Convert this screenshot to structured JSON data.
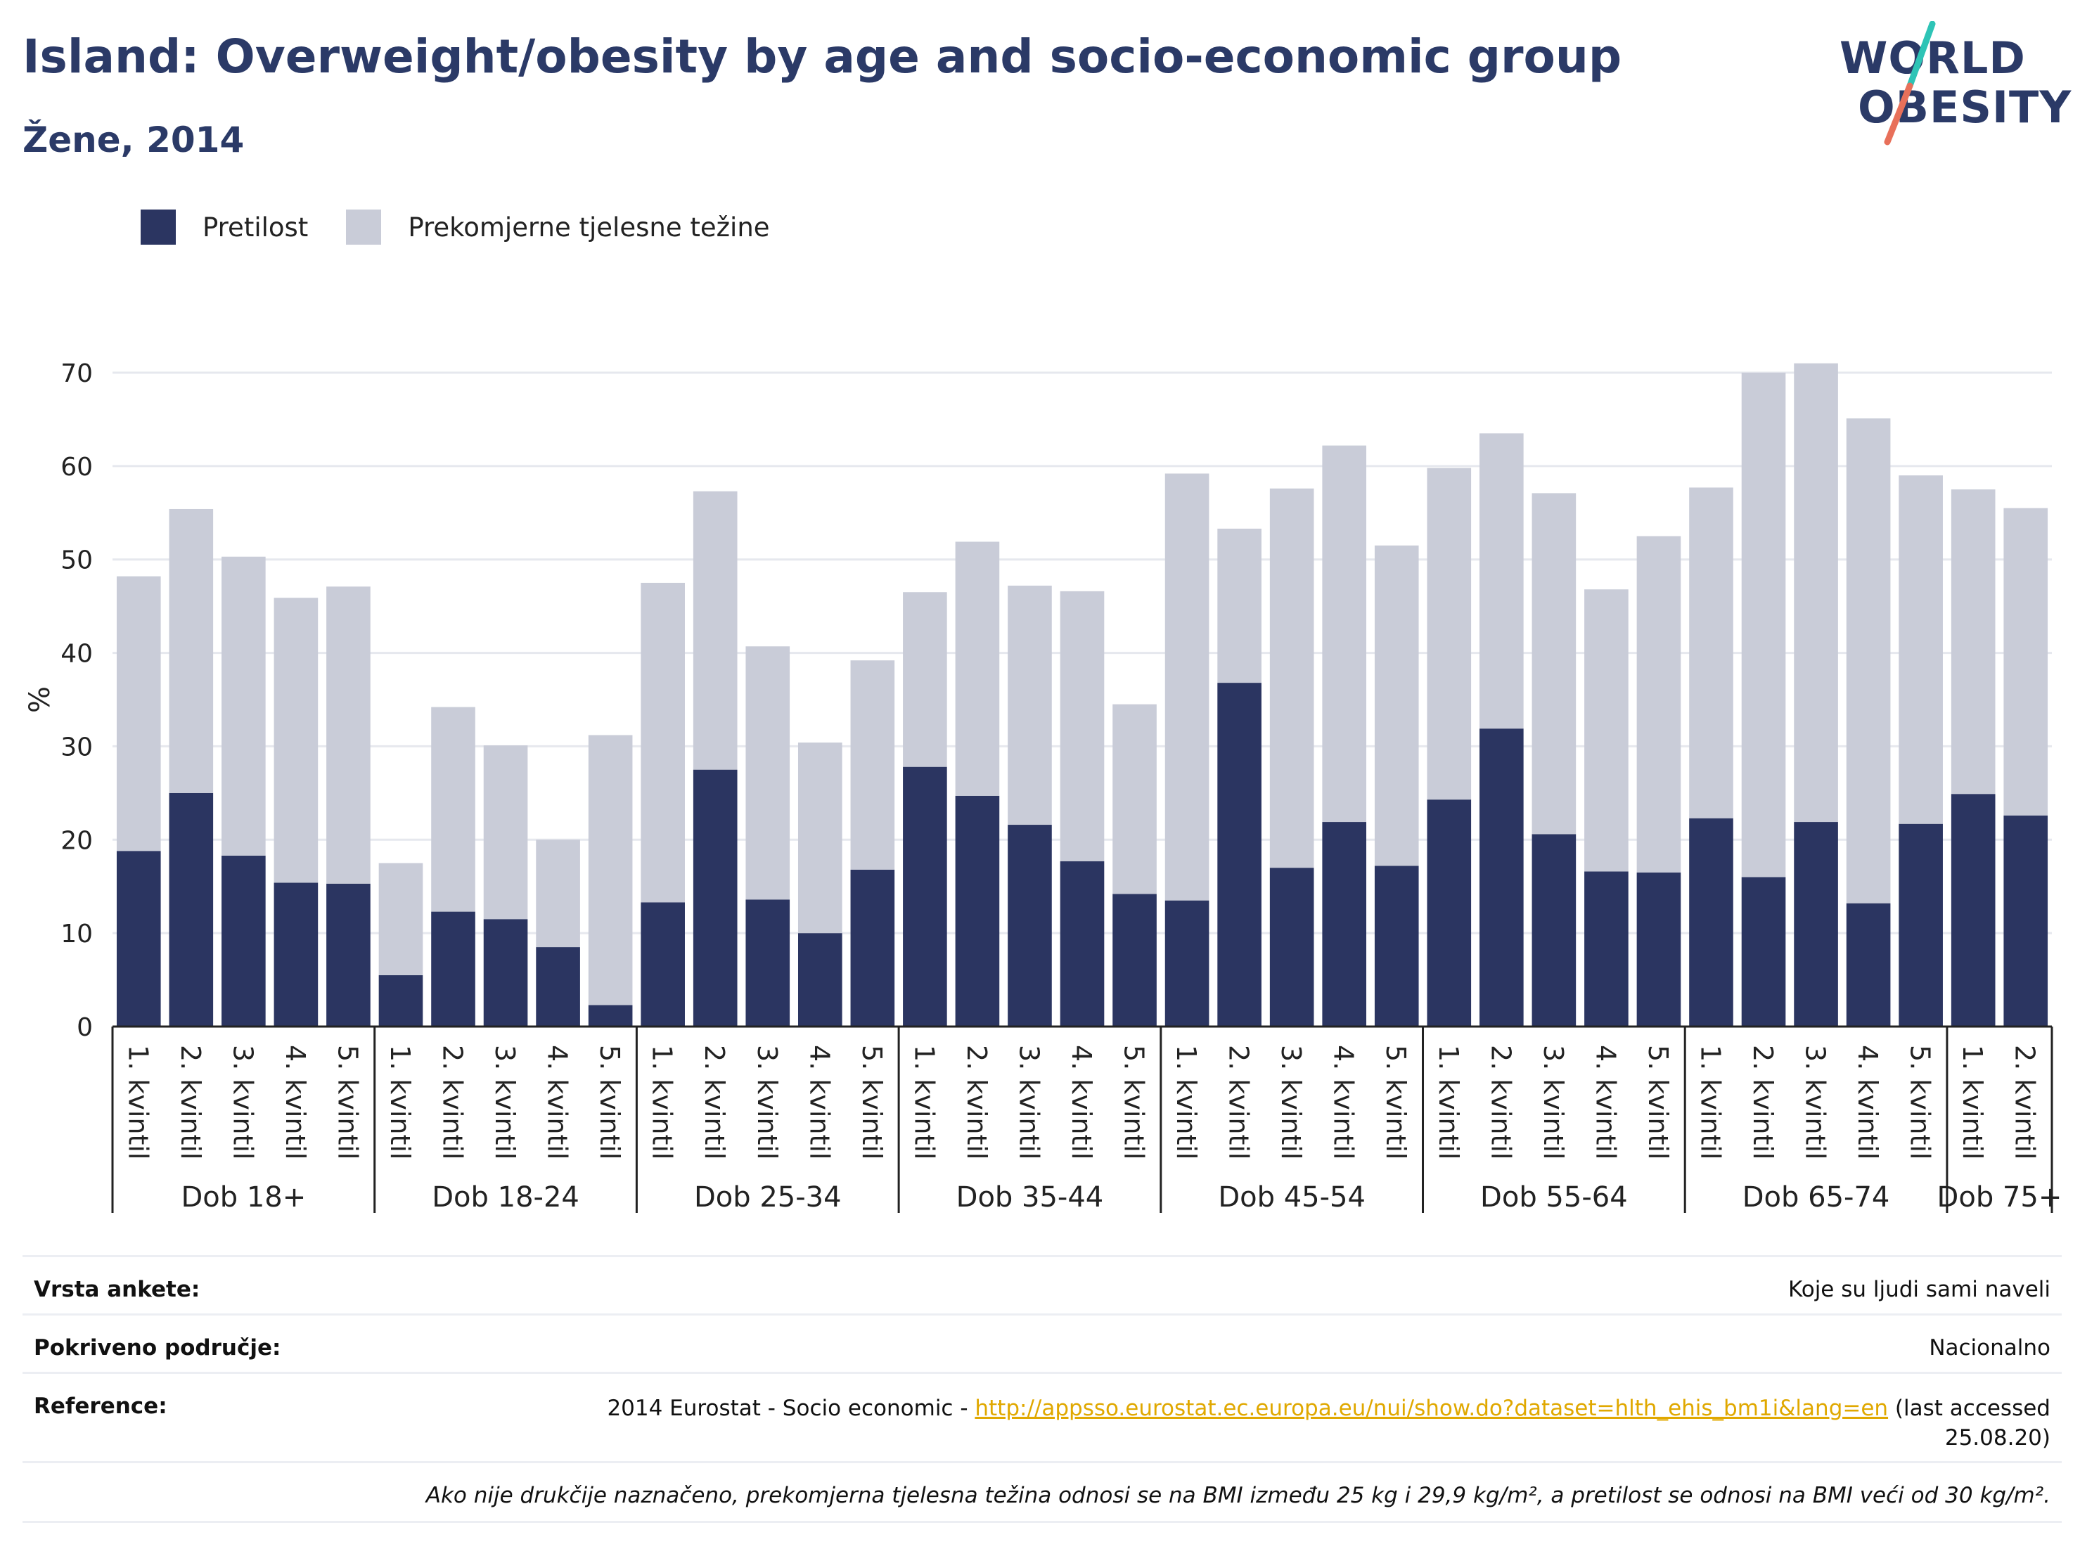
{
  "header": {
    "title": "Island: Overweight/obesity by age and socio-economic group",
    "subtitle": "Žene, 2014"
  },
  "logo": {
    "line1": "WORLD",
    "line2": "OBESITY",
    "accent_teal": "#2ec4b6",
    "accent_coral": "#e8705a"
  },
  "legend": {
    "items": [
      {
        "label": "Pretilost",
        "color": "#2b3561"
      },
      {
        "label": "Prekomjerne tjelesne težine",
        "color": "#c9ccd8"
      }
    ]
  },
  "colors": {
    "obesity": "#2b3561",
    "overweight": "#c9ccd8",
    "grid": "#e6e8ee",
    "axis": "#222222",
    "text": "#2b3a67"
  },
  "chart_data": {
    "type": "bar",
    "stacked": true,
    "ylabel": "%",
    "ylim": [
      0,
      70
    ],
    "yticks": [
      0,
      10,
      20,
      30,
      40,
      50,
      60,
      70
    ],
    "grid": true,
    "legend_position": "top-left",
    "groups": [
      "Dob 18+",
      "Dob 18-24",
      "Dob 25-34",
      "Dob 35-44",
      "Dob 45-54",
      "Dob 55-64",
      "Dob 65-74",
      "Dob 75+"
    ],
    "categories": [
      {
        "label": "1. kvintil",
        "group": "Dob 18+"
      },
      {
        "label": "2. kvintil",
        "group": "Dob 18+"
      },
      {
        "label": "3. kvintil",
        "group": "Dob 18+"
      },
      {
        "label": "4. kvintil",
        "group": "Dob 18+"
      },
      {
        "label": "5. kvintil",
        "group": "Dob 18+"
      },
      {
        "label": "1. kvintil",
        "group": "Dob 18-24"
      },
      {
        "label": "2. kvintil",
        "group": "Dob 18-24"
      },
      {
        "label": "3. kvintil",
        "group": "Dob 18-24"
      },
      {
        "label": "4. kvintil",
        "group": "Dob 18-24"
      },
      {
        "label": "5. kvintil",
        "group": "Dob 18-24"
      },
      {
        "label": "1. kvintil",
        "group": "Dob 25-34"
      },
      {
        "label": "2. kvintil",
        "group": "Dob 25-34"
      },
      {
        "label": "3. kvintil",
        "group": "Dob 25-34"
      },
      {
        "label": "4. kvintil",
        "group": "Dob 25-34"
      },
      {
        "label": "5. kvintil",
        "group": "Dob 25-34"
      },
      {
        "label": "1. kvintil",
        "group": "Dob 35-44"
      },
      {
        "label": "2. kvintil",
        "group": "Dob 35-44"
      },
      {
        "label": "3. kvintil",
        "group": "Dob 35-44"
      },
      {
        "label": "4. kvintil",
        "group": "Dob 35-44"
      },
      {
        "label": "5. kvintil",
        "group": "Dob 35-44"
      },
      {
        "label": "1. kvintil",
        "group": "Dob 45-54"
      },
      {
        "label": "2. kvintil",
        "group": "Dob 45-54"
      },
      {
        "label": "3. kvintil",
        "group": "Dob 45-54"
      },
      {
        "label": "4. kvintil",
        "group": "Dob 45-54"
      },
      {
        "label": "5. kvintil",
        "group": "Dob 45-54"
      },
      {
        "label": "1. kvintil",
        "group": "Dob 55-64"
      },
      {
        "label": "2. kvintil",
        "group": "Dob 55-64"
      },
      {
        "label": "3. kvintil",
        "group": "Dob 55-64"
      },
      {
        "label": "4. kvintil",
        "group": "Dob 55-64"
      },
      {
        "label": "5. kvintil",
        "group": "Dob 55-64"
      },
      {
        "label": "1. kvintil",
        "group": "Dob 65-74"
      },
      {
        "label": "2. kvintil",
        "group": "Dob 65-74"
      },
      {
        "label": "3. kvintil",
        "group": "Dob 65-74"
      },
      {
        "label": "4. kvintil",
        "group": "Dob 65-74"
      },
      {
        "label": "5. kvintil",
        "group": "Dob 65-74"
      },
      {
        "label": "1. kvintil",
        "group": "Dob 75+"
      },
      {
        "label": "2. kvintil",
        "group": "Dob 75+"
      }
    ],
    "series": [
      {
        "name": "Pretilost",
        "values": [
          18.8,
          25.0,
          18.3,
          15.4,
          15.3,
          5.5,
          12.3,
          11.5,
          8.5,
          2.3,
          13.3,
          27.5,
          13.6,
          10.0,
          16.8,
          27.8,
          24.7,
          21.6,
          17.7,
          14.2,
          13.5,
          36.8,
          17.0,
          21.9,
          17.2,
          24.3,
          31.9,
          20.6,
          16.6,
          16.5,
          22.3,
          16.0,
          21.9,
          13.2,
          21.7,
          24.9,
          22.6
        ]
      },
      {
        "name": "Prekomjerne tjelesne težine",
        "values": [
          29.4,
          30.4,
          32.0,
          30.5,
          31.8,
          12.0,
          21.9,
          18.6,
          11.5,
          28.9,
          34.2,
          29.8,
          27.1,
          20.4,
          22.4,
          18.7,
          27.2,
          25.6,
          28.9,
          20.3,
          45.7,
          16.5,
          40.6,
          40.3,
          34.3,
          35.5,
          31.6,
          36.5,
          30.2,
          36.0,
          35.4,
          54.0,
          49.1,
          51.9,
          37.3,
          32.6,
          32.9
        ]
      }
    ]
  },
  "info_table": [
    {
      "key": "Vrsta ankete:",
      "value": "Koje su ljudi sami naveli"
    },
    {
      "key": "Pokriveno područje:",
      "value": "Nacionalno"
    },
    {
      "key": "Reference:",
      "value_prefix": "2014 Eurostat - Socio economic - ",
      "link": "http://appsso.eurostat.ec.europa.eu/nui/show.do?dataset=hlth_ehis_bm1i&lang=en",
      "value_suffix": " (last accessed",
      "value_line2": "25.08.20)"
    }
  ],
  "footnote": "Ako nije drukčije naznačeno, prekomjerna tjelesna težina odnosi se na BMI između 25 kg i 29,9 kg/m², a pretilost se odnosi na BMI veći od 30 kg/m²."
}
